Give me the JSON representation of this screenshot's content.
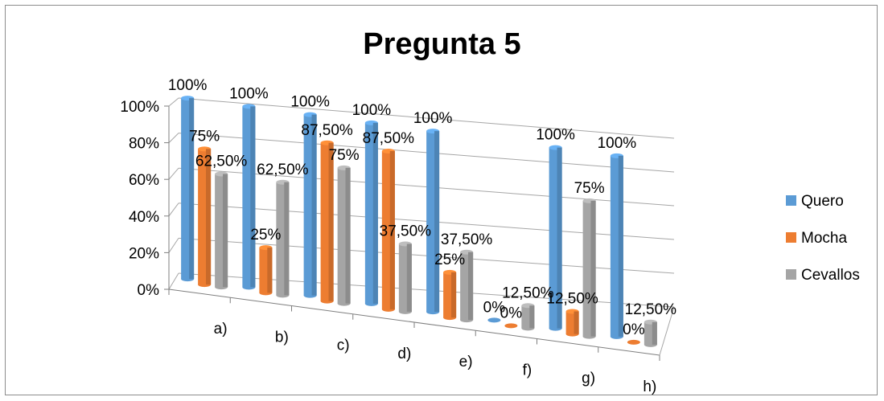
{
  "chart_data": {
    "type": "bar",
    "title": "Pregunta 5",
    "categories": [
      "a)",
      "b)",
      "c)",
      "d)",
      "e)",
      "f)",
      "g)",
      "h)"
    ],
    "series": [
      {
        "name": "Quero",
        "values": [
          100,
          100,
          100,
          100,
          100,
          0,
          100,
          100
        ],
        "labels": [
          "100%",
          "100%",
          "100%",
          "100%",
          "100%",
          "0%",
          "100%",
          "100%"
        ],
        "color": "#5b9bd5"
      },
      {
        "name": "Mocha",
        "values": [
          75,
          25,
          87.5,
          87.5,
          25,
          0,
          12.5,
          0
        ],
        "labels": [
          "75%",
          "25%",
          "87,50%",
          "87,50%",
          "25%",
          "0%",
          "12,50%",
          "0%"
        ],
        "color": "#ed7d31"
      },
      {
        "name": "Cevallos",
        "values": [
          62.5,
          62.5,
          75,
          37.5,
          37.5,
          12.5,
          75,
          12.5
        ],
        "labels": [
          "62,50%",
          "62,50%",
          "75%",
          "37,50%",
          "37,50%",
          "12,50%",
          "75%",
          "12,50%"
        ],
        "color": "#a5a5a5"
      }
    ],
    "y_ticks": [
      "0%",
      "20%",
      "40%",
      "60%",
      "80%",
      "100%"
    ],
    "ylim": [
      0,
      100
    ],
    "grid": true,
    "legend": "right",
    "style": "3d-clustered-column"
  }
}
